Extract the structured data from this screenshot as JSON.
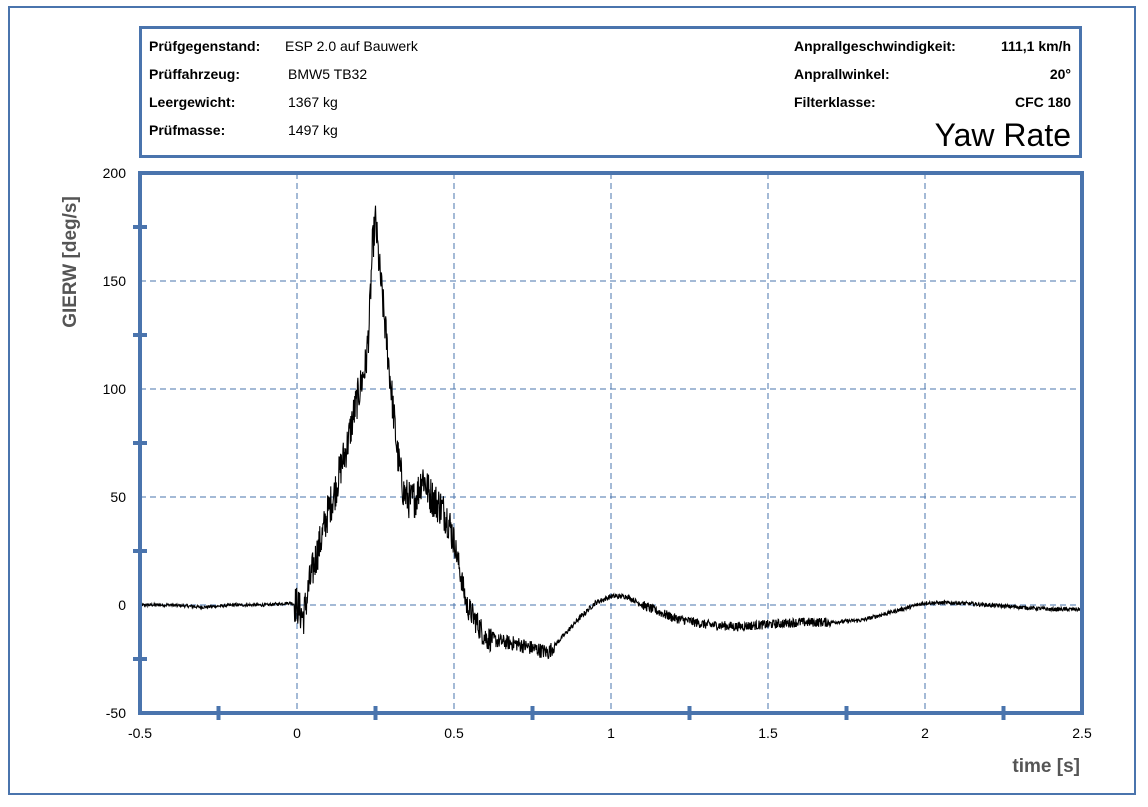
{
  "header": {
    "left": [
      {
        "label": "Prüfgegenstand:",
        "value": "ESP 2.0 auf Bauwerk"
      },
      {
        "label": "Prüffahrzeug:",
        "value": "BMW5 TB32"
      },
      {
        "label": "Leergewicht:",
        "value": "1367 kg"
      },
      {
        "label": "Prüfmasse:",
        "value": "1497 kg"
      }
    ],
    "right": [
      {
        "label": "Anprallgeschwindigkeit:",
        "value": "111,1 km/h"
      },
      {
        "label": "Anprallwinkel:",
        "value": "20°"
      },
      {
        "label": "Filterklasse:",
        "value": "CFC 180"
      }
    ],
    "chart_name": "Yaw Rate"
  },
  "colors": {
    "frame": "#4a74ad",
    "grid": "#4a74ad",
    "trace": "#000000",
    "axis_title": "#555555"
  },
  "chart_data": {
    "type": "line",
    "title": "Yaw Rate",
    "xlabel": "time [s]",
    "ylabel": "GIERW [deg/s]",
    "xlim": [
      -0.5,
      2.5
    ],
    "ylim": [
      -50,
      200
    ],
    "x_ticks": [
      -0.5,
      0,
      0.5,
      1,
      1.5,
      2,
      2.5
    ],
    "x_tick_labels": [
      "-0.5",
      "0",
      "0.5",
      "1",
      "1.5",
      "2",
      "2.5"
    ],
    "x_minor_ticks": [
      -0.25,
      0.25,
      0.75,
      1.25,
      1.75,
      2.25
    ],
    "y_ticks": [
      -50,
      0,
      50,
      100,
      150,
      200
    ],
    "y_tick_labels": [
      "-50",
      "0",
      "50",
      "100",
      "150",
      "200"
    ],
    "y_minor_ticks": [
      -25,
      25,
      75,
      125,
      175
    ],
    "grid": true,
    "series": [
      {
        "x": [
          -0.5,
          -0.4,
          -0.3,
          -0.2,
          -0.1,
          -0.02,
          0,
          0.02,
          0.04,
          0.06,
          0.08,
          0.1,
          0.12,
          0.14,
          0.16,
          0.18,
          0.2,
          0.22,
          0.23,
          0.24,
          0.25,
          0.26,
          0.28,
          0.3,
          0.32,
          0.34,
          0.36,
          0.38,
          0.4,
          0.42,
          0.44,
          0.46,
          0.48,
          0.5,
          0.52,
          0.54,
          0.56,
          0.58,
          0.6,
          0.65,
          0.7,
          0.75,
          0.8,
          0.85,
          0.9,
          0.95,
          1.0,
          1.05,
          1.1,
          1.15,
          1.2,
          1.3,
          1.4,
          1.5,
          1.6,
          1.7,
          1.8,
          1.9,
          2.0,
          2.1,
          2.2,
          2.3,
          2.4,
          2.5
        ],
        "y": [
          0,
          0,
          -1,
          0,
          0,
          1,
          0,
          -6,
          10,
          22,
          32,
          44,
          52,
          64,
          74,
          88,
          100,
          112,
          130,
          165,
          178,
          160,
          130,
          100,
          70,
          52,
          48,
          50,
          60,
          52,
          48,
          45,
          40,
          30,
          15,
          0,
          -5,
          -10,
          -15,
          -17,
          -18,
          -20,
          -22,
          -14,
          -6,
          1,
          4,
          4,
          0,
          -3,
          -6,
          -9,
          -10,
          -9,
          -8,
          -8,
          -7,
          -3,
          1,
          1,
          0,
          -1,
          -2,
          -2
        ]
      }
    ]
  }
}
